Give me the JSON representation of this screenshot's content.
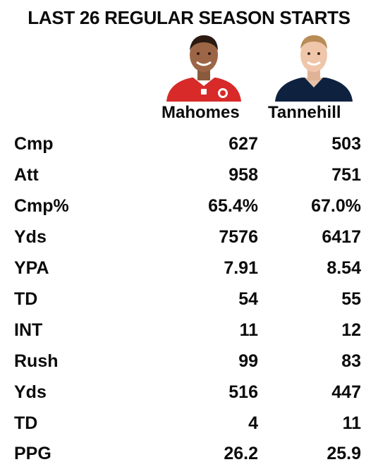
{
  "title": "LAST 26 REGULAR SEASON STARTS",
  "players": [
    {
      "name": "Mahomes",
      "photo_icon": "mahomes-headshot",
      "jersey_color": "#d72a29"
    },
    {
      "name": "Tannehill",
      "photo_icon": "tannehill-headshot",
      "jersey_color": "#0e2240"
    }
  ],
  "rows": [
    {
      "label": "Cmp",
      "v1": "627",
      "v2": "503"
    },
    {
      "label": "Att",
      "v1": "958",
      "v2": "751"
    },
    {
      "label": "Cmp%",
      "v1": "65.4%",
      "v2": "67.0%"
    },
    {
      "label": "Yds",
      "v1": "7576",
      "v2": "6417"
    },
    {
      "label": "YPA",
      "v1": "7.91",
      "v2": "8.54"
    },
    {
      "label": "TD",
      "v1": "54",
      "v2": "55"
    },
    {
      "label": "INT",
      "v1": "11",
      "v2": "12"
    },
    {
      "label": "Rush",
      "v1": "99",
      "v2": "83"
    },
    {
      "label": "Yds",
      "v1": "516",
      "v2": "447"
    },
    {
      "label": "TD",
      "v1": "4",
      "v2": "11"
    },
    {
      "label": "PPG",
      "v1": "26.2",
      "v2": "25.9"
    }
  ]
}
